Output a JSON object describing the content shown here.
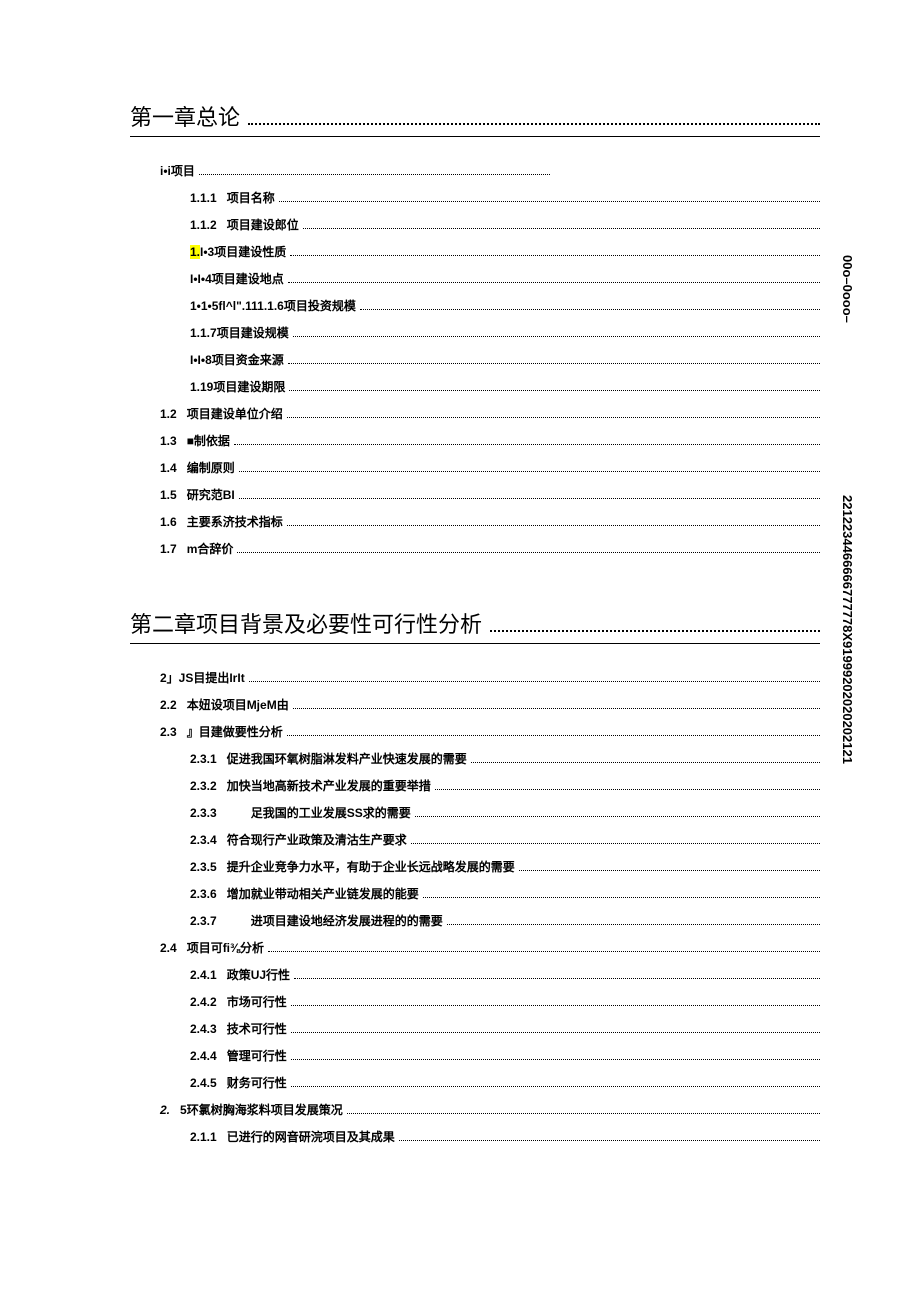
{
  "chapter1": {
    "title": "第一章总论",
    "items": [
      {
        "indent": 1,
        "num": "",
        "label": "i•i项目",
        "dots_short": true
      },
      {
        "indent": 2,
        "num": "1.1.1",
        "label": "项目名称"
      },
      {
        "indent": 2,
        "num": "1.1.2",
        "label": "项目建设郎位"
      },
      {
        "indent": 2,
        "num": "",
        "label": "I•3项目建设性质",
        "highlight_prefix": "1."
      },
      {
        "indent": 2,
        "num": "",
        "label": "I•I•4项目建设地点"
      },
      {
        "indent": 2,
        "num": "",
        "label": "1•1•5fl^l\".111.1.6项目投资规模"
      },
      {
        "indent": 2,
        "num": "",
        "label": "1.1.7项目建设规模"
      },
      {
        "indent": 2,
        "num": "",
        "label": "I•I•8项目资金来源"
      },
      {
        "indent": 2,
        "num": "",
        "label": "1.19项目建设期限"
      },
      {
        "indent": 1,
        "num": "1.2",
        "label": "项目建设单位介绍"
      },
      {
        "indent": 1,
        "num": "1.3",
        "label": "■制依据"
      },
      {
        "indent": 1,
        "num": "1.4",
        "label": "编制原则"
      },
      {
        "indent": 1,
        "num": "1.5",
        "label": "研究范BI"
      },
      {
        "indent": 1,
        "num": "1.6",
        "label": "主要系济技术指标"
      },
      {
        "indent": 1,
        "num": "1.7",
        "label": "m合辞价"
      }
    ]
  },
  "chapter2": {
    "title": "第二章项目背景及必要性可行性分析",
    "items": [
      {
        "indent": 1,
        "num": "",
        "label": "2」JS目提出IrIt"
      },
      {
        "indent": 1,
        "num": "2.2",
        "label": "本妞设项目MjeM由"
      },
      {
        "indent": 1,
        "num": "2.3",
        "label": "』目建做要性分析"
      },
      {
        "indent": 2,
        "num": "2.3.1",
        "label": "促进我国环氧树脂淋发料产业快速发展的需要"
      },
      {
        "indent": 2,
        "num": "2.3.2",
        "label": "加快当地高新技术产业发展的重要举措"
      },
      {
        "indent": 2,
        "num": "2.3.3",
        "label": "　　足我国的工业发展SS求的需要"
      },
      {
        "indent": 2,
        "num": "2.3.4",
        "label": "符合现行产业政策及清沽生产要求"
      },
      {
        "indent": 2,
        "num": "2.3.5",
        "label": "提升企业竞争力水平，有助于企业长远战略发展的需要"
      },
      {
        "indent": 2,
        "num": "2.3.6",
        "label": "增加就业带动相关产业链发展的能要"
      },
      {
        "indent": 2,
        "num": "2.3.7",
        "label": "　　进项目建设地经济发展进程的的需要"
      },
      {
        "indent": 1,
        "num": "2.4",
        "label": "项目可fi⅜分析"
      },
      {
        "indent": 2,
        "num": "2.4.1",
        "label": "政策UJ行性"
      },
      {
        "indent": 2,
        "num": "2.4.2",
        "label": "市场可行性"
      },
      {
        "indent": 2,
        "num": "2.4.3",
        "label": "技术可行性"
      },
      {
        "indent": 2,
        "num": "2.4.4",
        "label": "管理可行性"
      },
      {
        "indent": 2,
        "num": "2.4.5",
        "label": "财务可行性"
      },
      {
        "indent": 1,
        "num": "2.",
        "label": "5环氯树胸海浆料项目发展策况",
        "italic_num": true
      },
      {
        "indent": 2,
        "num": "2.1.1",
        "label": "已进行的网音研浣项目及其成果"
      }
    ]
  },
  "side1": "00o–0ooo–",
  "side2": "2212234466666777778X91999202020202121"
}
